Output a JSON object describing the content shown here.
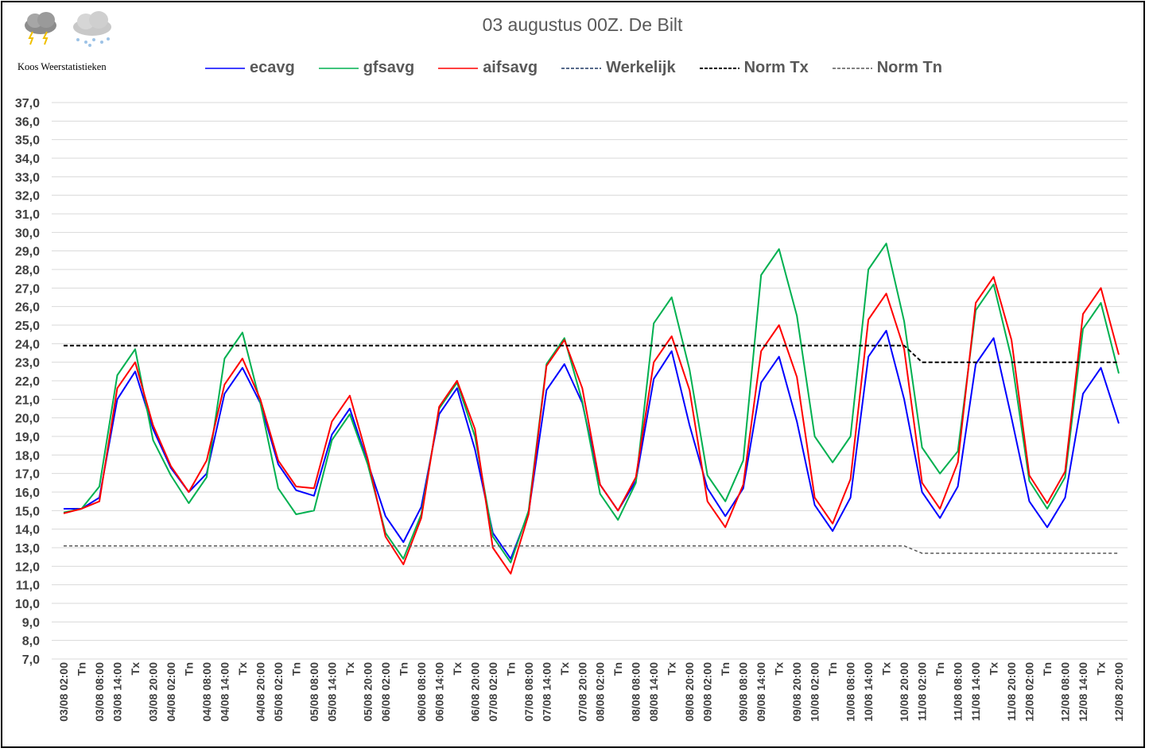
{
  "header": {
    "title": "03 augustus 00Z. De Bilt",
    "brand": "Koos Weerstatistieken"
  },
  "legend": [
    {
      "name": "ecavg",
      "color": "#0000FF",
      "style": "solid"
    },
    {
      "name": "gfsavg",
      "color": "#00B050",
      "style": "solid"
    },
    {
      "name": "aifsavg",
      "color": "#FF0000",
      "style": "solid"
    },
    {
      "name": "Werkelijk",
      "color": "#1F3864",
      "style": "dashed"
    },
    {
      "name": "Norm Tx",
      "color": "#000000",
      "style": "dashed"
    },
    {
      "name": "Norm Tn",
      "color": "#595959",
      "style": "dashed"
    }
  ],
  "chart_data": {
    "type": "line",
    "title": "03 augustus 00Z. De Bilt",
    "xlabel": "",
    "ylabel": "",
    "ylim": [
      7,
      37
    ],
    "yticks": [
      "37,0",
      "36,0",
      "35,0",
      "34,0",
      "33,0",
      "32,0",
      "31,0",
      "30,0",
      "29,0",
      "28,0",
      "27,0",
      "26,0",
      "25,0",
      "24,0",
      "23,0",
      "22,0",
      "21,0",
      "20,0",
      "19,0",
      "18,0",
      "17,0",
      "16,0",
      "15,0",
      "14,0",
      "13,0",
      "12,0",
      "11,0",
      "10,0",
      "9,0",
      "8,0",
      "7,0"
    ],
    "grid": true,
    "legend_position": "top",
    "categories": [
      "03/08 02:00",
      "Tn",
      "03/08 08:00",
      "03/08 14:00",
      "Tx",
      "03/08 20:00",
      "04/08 02:00",
      "Tn",
      "04/08 08:00",
      "04/08 14:00",
      "Tx",
      "04/08 20:00",
      "05/08 02:00",
      "Tn",
      "05/08 08:00",
      "05/08 14:00",
      "Tx",
      "05/08 20:00",
      "06/08 02:00",
      "Tn",
      "06/08 08:00",
      "06/08 14:00",
      "Tx",
      "06/08 20:00",
      "07/08 02:00",
      "Tn",
      "07/08 08:00",
      "07/08 14:00",
      "Tx",
      "07/08 20:00",
      "08/08 02:00",
      "Tn",
      "08/08 08:00",
      "08/08 14:00",
      "Tx",
      "08/08 20:00",
      "09/08 02:00",
      "Tn",
      "09/08 08:00",
      "09/08 14:00",
      "Tx",
      "09/08 20:00",
      "10/08 02:00",
      "Tn",
      "10/08 08:00",
      "10/08 14:00",
      "Tx",
      "10/08 20:00",
      "11/08 02:00",
      "Tn",
      "11/08 08:00",
      "11/08 14:00",
      "Tx",
      "11/08 20:00",
      "12/08 02:00",
      "Tn",
      "12/08 08:00",
      "12/08 14:00",
      "Tx",
      "12/08 20:00"
    ],
    "series": [
      {
        "name": "ecavg",
        "color": "#0000FF",
        "dash": false,
        "values": [
          15.1,
          15.1,
          15.7,
          21.0,
          22.5,
          19.4,
          17.3,
          16.0,
          17.0,
          21.3,
          22.7,
          20.8,
          17.5,
          16.1,
          15.8,
          19.1,
          20.5,
          17.6,
          14.7,
          13.3,
          15.2,
          20.2,
          21.6,
          18.3,
          13.8,
          12.4,
          14.9,
          21.5,
          22.9,
          20.8,
          16.4,
          15.0,
          16.6,
          22.1,
          23.6,
          19.6,
          16.2,
          14.7,
          16.2,
          21.9,
          23.3,
          19.8,
          15.3,
          13.9,
          15.7,
          23.3,
          24.7,
          21.0,
          16.0,
          14.6,
          16.3,
          22.9,
          24.3,
          20.0,
          15.5,
          14.1,
          15.7,
          21.3,
          22.7,
          19.7
        ]
      },
      {
        "name": "gfsavg",
        "color": "#00B050",
        "dash": false,
        "values": [
          14.9,
          15.1,
          16.3,
          22.3,
          23.7,
          18.8,
          16.9,
          15.4,
          16.8,
          23.2,
          24.6,
          20.8,
          16.2,
          14.8,
          15.0,
          18.8,
          20.2,
          17.5,
          13.8,
          12.4,
          14.8,
          20.5,
          21.9,
          19.0,
          13.6,
          12.2,
          15.0,
          22.9,
          24.3,
          20.9,
          15.9,
          14.5,
          16.5,
          25.1,
          26.5,
          22.6,
          16.9,
          15.5,
          17.7,
          27.7,
          29.1,
          25.5,
          19.0,
          17.6,
          19.0,
          28.0,
          29.4,
          25.2,
          18.4,
          17.0,
          18.2,
          25.8,
          27.2,
          23.2,
          16.6,
          15.1,
          16.8,
          24.8,
          26.2,
          22.4
        ]
      },
      {
        "name": "aifsavg",
        "color": "#FF0000",
        "dash": false,
        "values": [
          14.85,
          15.1,
          15.5,
          21.6,
          23.0,
          19.6,
          17.4,
          16.0,
          17.7,
          21.8,
          23.2,
          21.0,
          17.7,
          16.3,
          16.2,
          19.8,
          21.2,
          17.8,
          13.6,
          12.1,
          14.6,
          20.6,
          22.0,
          19.4,
          13.0,
          11.6,
          14.8,
          22.8,
          24.2,
          21.6,
          16.4,
          15.0,
          16.8,
          23.0,
          24.4,
          21.5,
          15.5,
          14.1,
          16.4,
          23.6,
          25.0,
          22.2,
          15.7,
          14.3,
          16.7,
          25.3,
          26.7,
          23.7,
          16.5,
          15.1,
          17.6,
          26.2,
          27.6,
          24.2,
          16.9,
          15.4,
          17.1,
          25.6,
          27.0,
          23.4
        ]
      },
      {
        "name": "Norm Tx",
        "color": "#000000",
        "dash": true,
        "values": [
          23.9,
          23.9,
          23.9,
          23.9,
          23.9,
          23.9,
          23.9,
          23.9,
          23.9,
          23.9,
          23.9,
          23.9,
          23.9,
          23.9,
          23.9,
          23.9,
          23.9,
          23.9,
          23.9,
          23.9,
          23.9,
          23.9,
          23.9,
          23.9,
          23.9,
          23.9,
          23.9,
          23.9,
          23.9,
          23.9,
          23.9,
          23.9,
          23.9,
          23.9,
          23.9,
          23.9,
          23.9,
          23.9,
          23.9,
          23.9,
          23.9,
          23.9,
          23.9,
          23.9,
          23.9,
          23.9,
          23.9,
          23.9,
          23.0,
          23.0,
          23.0,
          23.0,
          23.0,
          23.0,
          23.0,
          23.0,
          23.0,
          23.0,
          23.0,
          23.0
        ]
      },
      {
        "name": "Norm Tn",
        "color": "#595959",
        "dash": true,
        "values": [
          13.1,
          13.1,
          13.1,
          13.1,
          13.1,
          13.1,
          13.1,
          13.1,
          13.1,
          13.1,
          13.1,
          13.1,
          13.1,
          13.1,
          13.1,
          13.1,
          13.1,
          13.1,
          13.1,
          13.1,
          13.1,
          13.1,
          13.1,
          13.1,
          13.1,
          13.1,
          13.1,
          13.1,
          13.1,
          13.1,
          13.1,
          13.1,
          13.1,
          13.1,
          13.1,
          13.1,
          13.1,
          13.1,
          13.1,
          13.1,
          13.1,
          13.1,
          13.1,
          13.1,
          13.1,
          13.1,
          13.1,
          13.1,
          12.7,
          12.7,
          12.7,
          12.7,
          12.7,
          12.7,
          12.7,
          12.7,
          12.7,
          12.7,
          12.7,
          12.7
        ]
      }
    ]
  }
}
